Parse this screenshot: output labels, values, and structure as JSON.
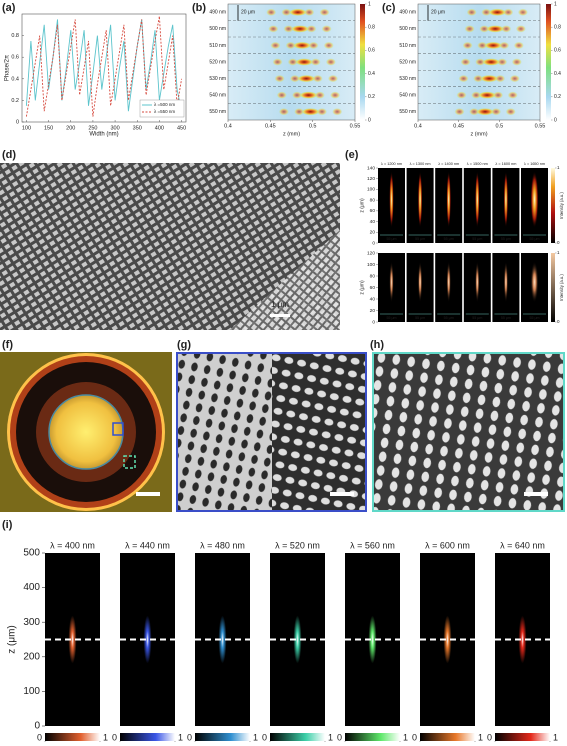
{
  "panel_labels": [
    "(a)",
    "(b)",
    "(c)",
    "(d)",
    "(e)",
    "(f)",
    "(g)",
    "(h)",
    "(i)"
  ],
  "chart_data": {
    "type": "line",
    "x_label": "Width (nm)",
    "y_label": "Phase/2π",
    "x": [
      100,
      110,
      120,
      130,
      140,
      150,
      160,
      170,
      180,
      190,
      200,
      210,
      220,
      230,
      240,
      250,
      260,
      270,
      280,
      290,
      300,
      310,
      320,
      330,
      340,
      350,
      360,
      370,
      380,
      390,
      400,
      410,
      420,
      430,
      440,
      450
    ],
    "series": [
      {
        "name": "λ =500 nm",
        "color": "#5cc4cc",
        "dash": false,
        "values": [
          0.15,
          0.75,
          0.2,
          0.55,
          0.9,
          0.3,
          0.6,
          0.95,
          0.2,
          0.5,
          0.85,
          0.3,
          0.55,
          0.85,
          0.15,
          0.45,
          0.8,
          0.3,
          0.6,
          0.9,
          0.2,
          0.5,
          0.75,
          0.1,
          0.4,
          0.7,
          0.95,
          0.3,
          0.55,
          0.85,
          0.2,
          0.45,
          0.7,
          0.9,
          0.3,
          0.1
        ]
      },
      {
        "name": "λ =550 nm",
        "color": "#d64a3e",
        "dash": true,
        "values": [
          0.05,
          0.3,
          0.55,
          0.8,
          0.1,
          0.35,
          0.6,
          0.9,
          0.2,
          0.45,
          0.7,
          0.95,
          0.25,
          0.5,
          0.75,
          0.05,
          0.35,
          0.6,
          0.85,
          0.15,
          0.4,
          0.65,
          0.9,
          0.2,
          0.45,
          0.7,
          0.95,
          0.25,
          0.5,
          0.75,
          0.98,
          0.3,
          0.55,
          0.8,
          0.15,
          0.4
        ]
      }
    ],
    "xlim": [
      90,
      460
    ],
    "ylim": [
      0,
      1
    ],
    "xticks": [
      100,
      150,
      200,
      250,
      300,
      350,
      400,
      450
    ],
    "yticks": [
      0,
      0.2,
      0.4,
      0.6,
      0.8
    ]
  },
  "panel_b": {
    "wavelengths": [
      "490 nm",
      "500 nm",
      "510 nm",
      "520 nm",
      "530 nm",
      "540 nm",
      "550 nm"
    ],
    "spacing": "20 μm",
    "x_label": "z (mm)",
    "xticks": [
      0.4,
      0.45,
      0.5,
      0.55
    ],
    "colorbar_ticks": [
      0,
      0.2,
      0.4,
      0.6,
      0.8,
      1
    ]
  },
  "panel_c": {
    "wavelengths": [
      "490 nm",
      "500 nm",
      "510 nm",
      "520 nm",
      "530 nm",
      "540 nm",
      "550 nm"
    ],
    "spacing": "20 μm",
    "x_label": "z (mm)",
    "xticks": [
      0.4,
      0.45,
      0.5,
      0.55
    ],
    "colorbar_ticks": [
      0,
      0.2,
      0.4,
      0.6,
      0.8,
      1
    ]
  },
  "panel_d": {
    "scale_bar": "1 μm"
  },
  "panel_e": {
    "titles": [
      "λ = 1200 nm",
      "λ = 1300 nm",
      "λ = 1400 nm",
      "λ = 1500 nm",
      "λ = 1600 nm",
      "λ = 1650 nm"
    ],
    "y_label": "z (μm)",
    "top_yticks": [
      0,
      20,
      40,
      60,
      80,
      100,
      120,
      140
    ],
    "bottom_yticks": [
      0,
      20,
      40,
      60,
      80,
      100,
      120
    ],
    "width_label": "55 μm",
    "colorbar_label": "Intensity (a.u.)",
    "colorbar_ticks": [
      0,
      1
    ]
  },
  "panel_i": {
    "titles": [
      "λ = 400 nm",
      "λ = 440 nm",
      "λ = 480 nm",
      "λ = 520 nm",
      "λ = 560 nm",
      "λ = 600 nm",
      "λ = 640 nm"
    ],
    "colors": [
      "#e2602e",
      "#3a56e6",
      "#2f8fd0",
      "#3ccfa8",
      "#5ee86a",
      "#e8782a",
      "#e4281a"
    ],
    "y_label": "z (μm)",
    "yticks": [
      0,
      100,
      200,
      300,
      400,
      500
    ],
    "focal_plane": 250,
    "colorbar_ticks": [
      0,
      1
    ]
  }
}
